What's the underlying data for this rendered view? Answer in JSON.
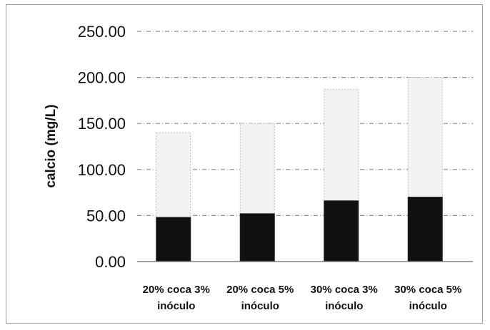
{
  "chart_data": {
    "type": "bar",
    "stacked": false,
    "categories": [
      [
        "20% coca 3%",
        "inóculo"
      ],
      [
        "20% coca 5%",
        "inóculo"
      ],
      [
        "30% coca 3%",
        "inóculo"
      ],
      [
        "30% coca 5%",
        "inóculo"
      ]
    ],
    "series": [
      {
        "values": [
          140,
          150,
          187,
          200
        ],
        "color": "#f2f2f2"
      },
      {
        "values": [
          48,
          52,
          66,
          70
        ],
        "color": "#111111"
      }
    ],
    "ylabel": "calcio (mg/L)",
    "ylim": [
      0,
      250
    ],
    "yticks": [
      "0.00",
      "50.00",
      "100.00",
      "150.00",
      "200.00",
      "250.00"
    ],
    "grid": true,
    "legend": "none"
  }
}
